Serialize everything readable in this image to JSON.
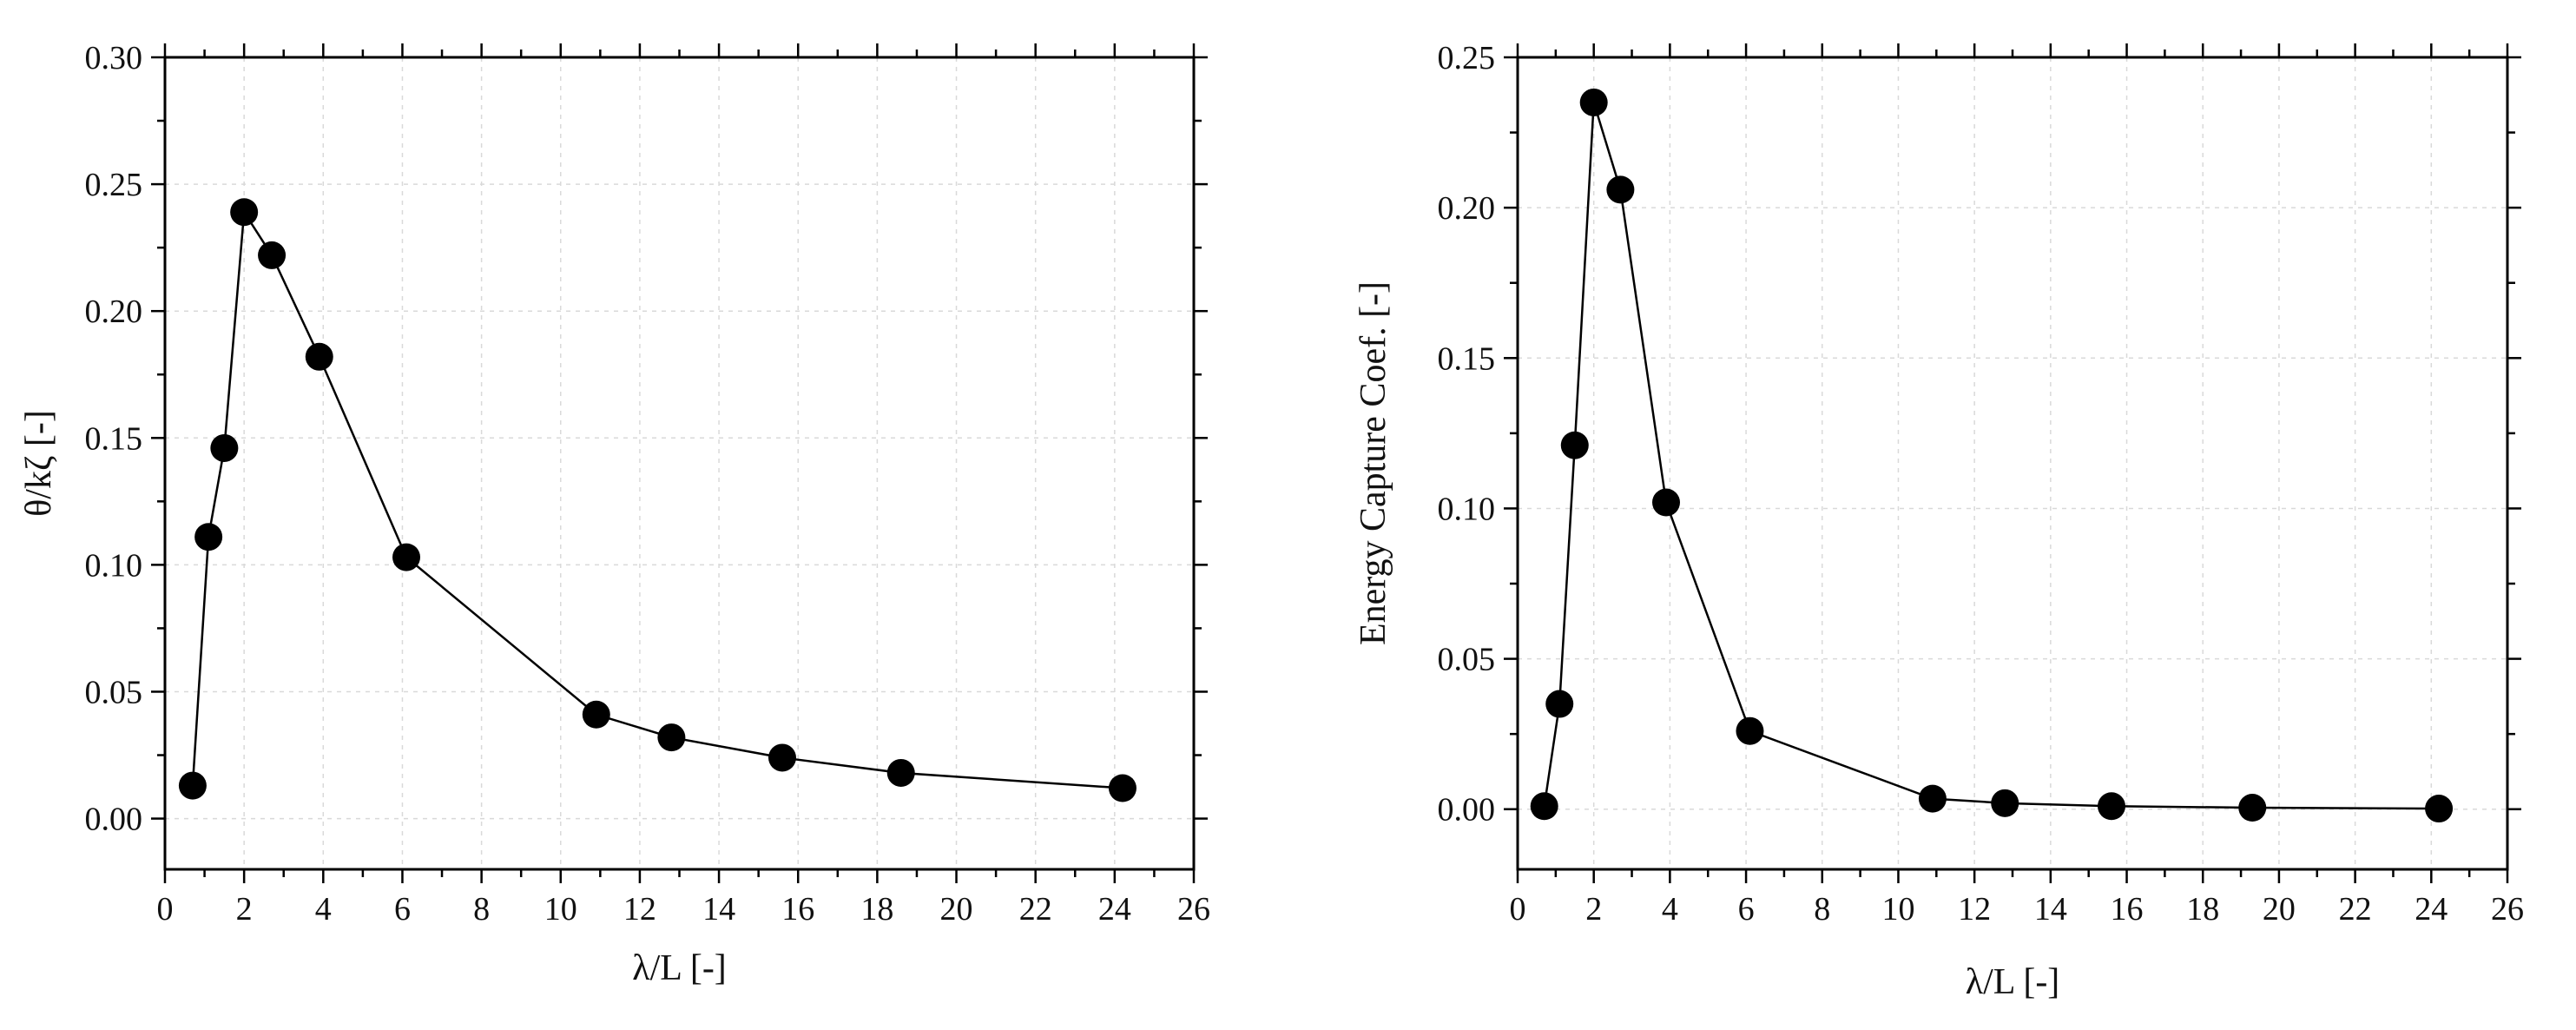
{
  "chart_data": [
    {
      "type": "line",
      "title": "",
      "xlabel": "λ/L [-]",
      "ylabel": "θ/kζ [-]",
      "xlim": [
        0,
        26
      ],
      "ylim": [
        -0.02,
        0.3
      ],
      "x_ticks": [
        0,
        2,
        4,
        6,
        8,
        10,
        12,
        14,
        16,
        18,
        20,
        22,
        24,
        26
      ],
      "y_ticks": [
        0.0,
        0.05,
        0.1,
        0.15,
        0.2,
        0.25,
        0.3
      ],
      "x_tick_labels": [
        "0",
        "2",
        "4",
        "6",
        "8",
        "10",
        "12",
        "14",
        "16",
        "18",
        "20",
        "22",
        "24",
        "26"
      ],
      "y_tick_labels": [
        "0.00",
        "0.05",
        "0.10",
        "0.15",
        "0.20",
        "0.25",
        "0.30"
      ],
      "grid": true,
      "marker": "filled-circle",
      "color": "#000000",
      "series": [
        {
          "x": [
            0.7,
            1.1,
            1.5,
            2.0,
            2.7,
            3.9,
            6.1,
            10.9,
            12.8,
            15.6,
            18.6,
            24.2
          ],
          "y": [
            0.013,
            0.111,
            0.146,
            0.239,
            0.222,
            0.182,
            0.103,
            0.041,
            0.032,
            0.024,
            0.018,
            0.012
          ]
        }
      ]
    },
    {
      "type": "line",
      "title": "",
      "xlabel": "λ/L [-]",
      "ylabel": "Energy Capture Coef. [-]",
      "xlim": [
        0,
        26
      ],
      "ylim": [
        -0.02,
        0.25
      ],
      "x_ticks": [
        0,
        2,
        4,
        6,
        8,
        10,
        12,
        14,
        16,
        18,
        20,
        22,
        24,
        26
      ],
      "y_ticks": [
        0.0,
        0.05,
        0.1,
        0.15,
        0.2,
        0.25
      ],
      "x_tick_labels": [
        "0",
        "2",
        "4",
        "6",
        "8",
        "10",
        "12",
        "14",
        "16",
        "18",
        "20",
        "22",
        "24",
        "26"
      ],
      "y_tick_labels": [
        "0.00",
        "0.05",
        "0.10",
        "0.15",
        "0.20",
        "0.25"
      ],
      "grid": true,
      "marker": "filled-circle",
      "color": "#000000",
      "series": [
        {
          "x": [
            0.7,
            1.1,
            1.5,
            2.0,
            2.7,
            3.9,
            6.1,
            10.9,
            12.8,
            15.6,
            19.3,
            24.2
          ],
          "y": [
            0.001,
            0.035,
            0.121,
            0.235,
            0.206,
            0.102,
            0.026,
            0.0035,
            0.002,
            0.001,
            0.0005,
            0.0002
          ]
        }
      ]
    }
  ]
}
